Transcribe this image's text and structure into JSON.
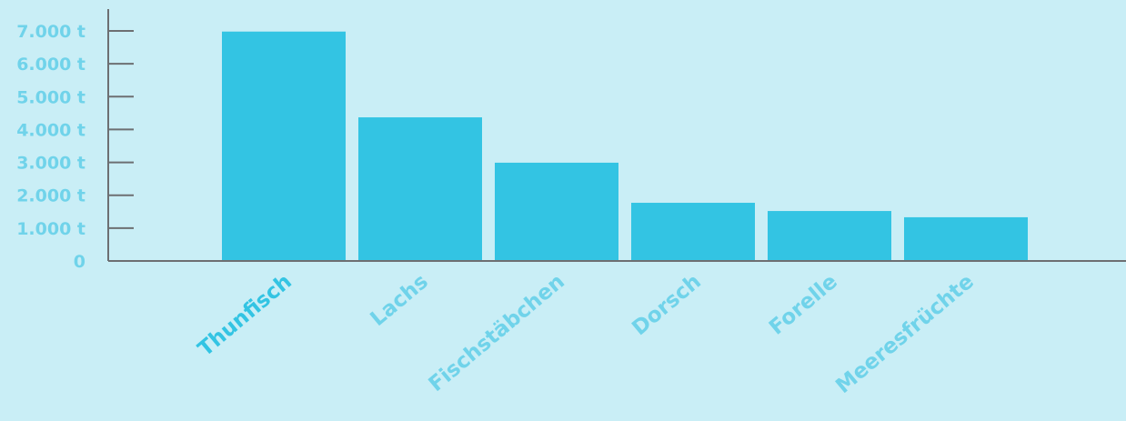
{
  "chart_data": {
    "type": "bar",
    "categories": [
      "Thunfisch",
      "Lachs",
      "Fischstäbchen",
      "Dorsch",
      "Forelle",
      "Meeresfrüchte"
    ],
    "values": [
      6980,
      4370,
      2990,
      1770,
      1520,
      1330
    ],
    "title": "",
    "xlabel": "",
    "ylabel": "",
    "ylim": [
      0,
      7000
    ],
    "yticks": [
      0,
      1000,
      2000,
      3000,
      4000,
      5000,
      6000,
      7000
    ],
    "ytick_labels": [
      "0",
      "1.000 t",
      "2.000 t",
      "3.000 t",
      "4.000 t",
      "5.000 t",
      "6.000 t",
      "7.000 t"
    ],
    "grid": false,
    "legend": "none",
    "colors": {
      "background": "#c9eef6",
      "bar": "#33c4e3",
      "axis": "#6d6f72",
      "tick_label": "#70d3ea",
      "highlight_label": "#33c4e3"
    },
    "highlight_category": "Thunfisch"
  }
}
